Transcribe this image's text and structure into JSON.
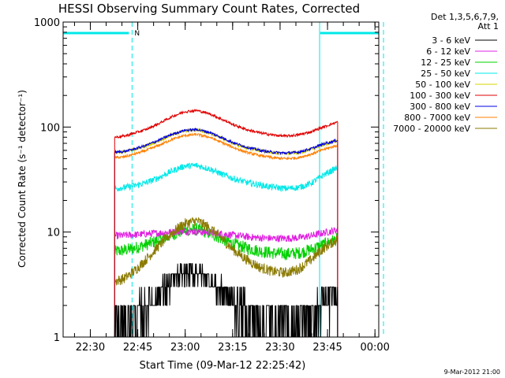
{
  "chart_data": {
    "type": "line",
    "title": "HESSI Observing Summary Count Rates, Corrected",
    "xlabel": "Start Time (09-Mar-12 22:25:42)",
    "ylabel": "Corrected Count Rate (s⁻¹ detector⁻¹)",
    "yscale": "log",
    "ylim": [
      1,
      1000
    ],
    "xlim_minutes_after_start": [
      -4.3,
      95.5
    ],
    "x_ticks": [
      {
        "minutes": 4.3,
        "label": "22:30"
      },
      {
        "minutes": 19.3,
        "label": "22:45"
      },
      {
        "minutes": 34.3,
        "label": "23:00"
      },
      {
        "minutes": 49.3,
        "label": "23:15"
      },
      {
        "minutes": 64.3,
        "label": "23:30"
      },
      {
        "minutes": 79.3,
        "label": "23:45"
      },
      {
        "minutes": 94.3,
        "label": "00:00"
      }
    ],
    "y_ticks": [
      {
        "value": 1,
        "label": "1"
      },
      {
        "value": 10,
        "label": "10"
      },
      {
        "value": 100,
        "label": "100"
      },
      {
        "value": 1000,
        "label": "1000"
      }
    ],
    "legend_header": [
      "Det 1,3,5,6,7,9,",
      "Att 1"
    ],
    "legend_position": "right",
    "x": [
      12.0,
      15.0,
      18.0,
      22.0,
      26.0,
      30.0,
      34.0,
      38.0,
      42.0,
      46.0,
      50.0,
      54.0,
      58.0,
      62.0,
      66.0,
      70.0,
      74.0,
      78.0,
      82.5
    ],
    "series": [
      {
        "name": "3 - 6 keV",
        "color": "#000000",
        "values": [
          1.2,
          1.3,
          1.5,
          2.0,
          2.6,
          3.4,
          4.0,
          4.2,
          3.6,
          2.8,
          2.2,
          1.8,
          1.5,
          1.4,
          1.3,
          1.3,
          1.5,
          2.0,
          2.8
        ]
      },
      {
        "name": "6 - 12 keV",
        "color": "#e020e0",
        "values": [
          9.2,
          9.3,
          9.4,
          9.6,
          9.8,
          10.0,
          10.2,
          10.1,
          9.9,
          9.6,
          9.3,
          9.0,
          8.8,
          8.7,
          8.7,
          8.8,
          9.2,
          9.8,
          10.5
        ]
      },
      {
        "name": "12 - 25 keV",
        "color": "#00d000",
        "values": [
          6.5,
          6.7,
          7.0,
          7.6,
          8.4,
          9.4,
          10.4,
          10.6,
          9.8,
          8.6,
          7.6,
          7.0,
          6.6,
          6.3,
          6.2,
          6.3,
          6.8,
          7.6,
          8.6
        ]
      },
      {
        "name": "25 - 50 keV",
        "color": "#00e8e8",
        "values": [
          26.0,
          26.5,
          27.5,
          29.5,
          33.0,
          38.0,
          42.5,
          43.0,
          40.0,
          35.5,
          32.0,
          29.5,
          28.0,
          26.8,
          26.0,
          26.5,
          29.0,
          35.0,
          41.0
        ]
      },
      {
        "name": "50 - 100 keV",
        "color": "#d4d400",
        "values": [
          57.0,
          58.0,
          61.0,
          66.0,
          74.0,
          84.0,
          92.0,
          94.0,
          88.0,
          78.0,
          69.0,
          63.0,
          59.5,
          57.0,
          56.0,
          57.0,
          61.0,
          68.0,
          74.0
        ]
      },
      {
        "name": "100 - 300 keV",
        "color": "#e00000",
        "values": [
          80.0,
          82.0,
          87.0,
          95.0,
          108.0,
          125.0,
          140.0,
          144.0,
          134.0,
          118.0,
          104.0,
          94.0,
          88.0,
          84.0,
          82.0,
          84.0,
          90.0,
          100.0,
          112.0
        ]
      },
      {
        "name": "300 - 800 keV",
        "color": "#0000e0",
        "values": [
          57.5,
          58.5,
          61.5,
          67.0,
          75.0,
          85.0,
          93.0,
          95.0,
          89.0,
          79.0,
          70.0,
          64.0,
          60.0,
          57.5,
          56.5,
          57.5,
          62.0,
          69.0,
          75.0
        ]
      },
      {
        "name": "800 - 7000 keV",
        "color": "#ff7f00",
        "values": [
          51.0,
          52.0,
          55.0,
          60.0,
          67.0,
          76.0,
          83.0,
          85.0,
          80.0,
          71.0,
          63.0,
          57.0,
          53.5,
          51.0,
          50.0,
          51.0,
          55.0,
          61.0,
          67.0
        ]
      },
      {
        "name": "7000 - 20000 keV",
        "color": "#8b7a00",
        "values": [
          3.4,
          3.6,
          4.2,
          5.5,
          7.4,
          9.8,
          12.0,
          12.8,
          11.0,
          8.6,
          6.6,
          5.4,
          4.6,
          4.2,
          4.1,
          4.4,
          5.4,
          7.0,
          8.6
        ]
      }
    ],
    "annotations": [
      {
        "text": "N",
        "color": "#00e8e8"
      }
    ],
    "event_bars_log10": [
      {
        "from_minutes": -4.3,
        "to_minutes": 16.5,
        "y": 1000,
        "color": "#00e8e8"
      },
      {
        "from_minutes": 77.0,
        "to_minutes": 95.5,
        "y": 1000,
        "color": "#00e8e8"
      }
    ],
    "dashed_lines_minutes": [
      17.5,
      97.0
    ],
    "solid_line_minutes": 76.8,
    "gridlines": false
  },
  "footer_date": "9-Mar-2012 21:00"
}
